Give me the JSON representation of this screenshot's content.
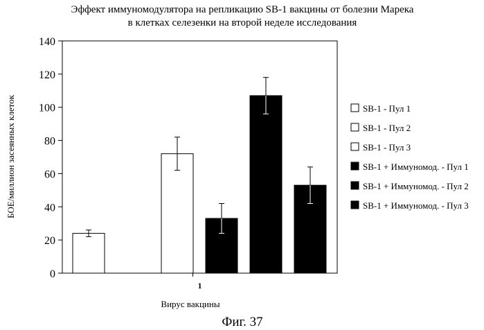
{
  "figure": {
    "caption": "Фиг. 37"
  },
  "chart_data": {
    "type": "bar",
    "title": "Эффект иммуномодулятора на репликацию SB-1 вакцины от болезни Марека",
    "subtitle": "в клетках селезенки на второй неделе исследования",
    "xlabel": "Вирус вакцины",
    "ylabel": "БОЕ/миллион засеянных клеток",
    "categories": [
      "1"
    ],
    "ylim": [
      0,
      140
    ],
    "yticks": [
      0,
      20,
      40,
      60,
      80,
      100,
      120,
      140
    ],
    "grid": false,
    "legend_position": "right",
    "series": [
      {
        "name": "SB-1 - Пул 1",
        "values": [
          24
        ],
        "error": [
          2
        ],
        "color": "#ffffff"
      },
      {
        "name": "SB-1 - Пул 2",
        "values": [
          0
        ],
        "error": [
          0
        ],
        "color": "#ffffff"
      },
      {
        "name": "SB-1 - Пул 3",
        "values": [
          72
        ],
        "error": [
          10
        ],
        "color": "#ffffff"
      },
      {
        "name": "SB-1 + Иммуномод. - Пул 1",
        "values": [
          33
        ],
        "error": [
          9
        ],
        "color": "#000000"
      },
      {
        "name": "SB-1 + Иммуномод. - Пул 2",
        "values": [
          107
        ],
        "error": [
          11
        ],
        "color": "#000000"
      },
      {
        "name": "SB-1 + Иммуномод. - Пул 3",
        "values": [
          53
        ],
        "error": [
          11
        ],
        "color": "#000000"
      }
    ]
  }
}
